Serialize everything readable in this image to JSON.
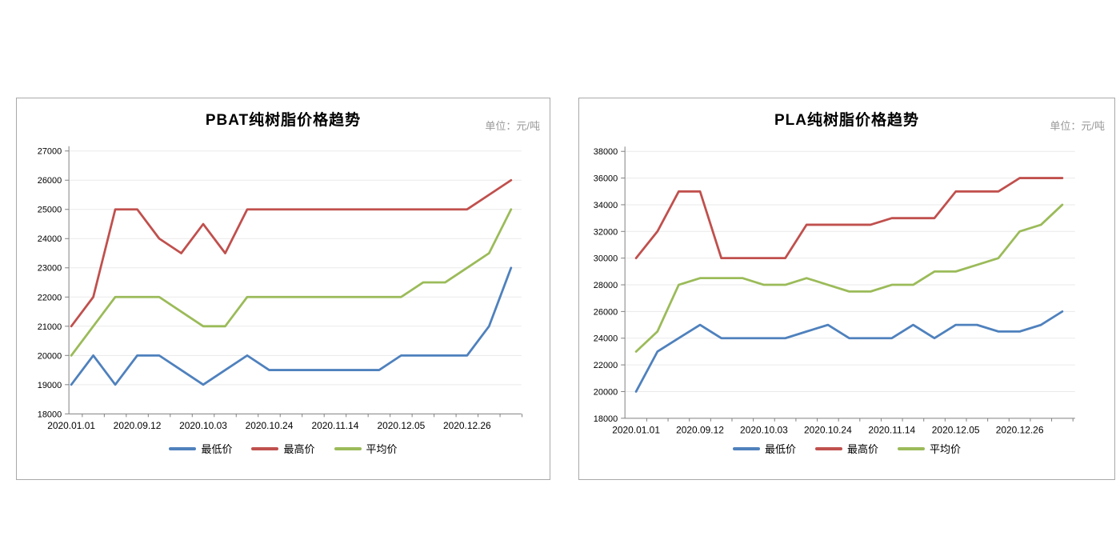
{
  "chart_data": [
    {
      "type": "line",
      "title": "PBAT纯树脂价格趋势",
      "unit_label": "单位：元/吨",
      "xlabel": "",
      "ylabel": "",
      "ylim": [
        18000,
        27000
      ],
      "ytick_step": 1000,
      "y_tick_labels": [
        "27000",
        "26000",
        "25000",
        "24000",
        "23000",
        "22000",
        "21000",
        "20000",
        "19000",
        "18000"
      ],
      "num_points": 21,
      "x_tick_labels": [
        "2020.01.01",
        "2020.09.12",
        "2020.10.03",
        "2020.10.24",
        "2020.11.14",
        "2020.12.05",
        "2020.12.26"
      ],
      "x_tick_label_point_indices": [
        0,
        3,
        6,
        9,
        12,
        15,
        18
      ],
      "grid": true,
      "legend_position": "bottom",
      "series": [
        {
          "name": "最低价",
          "color": "#4F81BD",
          "values": [
            19000,
            20000,
            19000,
            20000,
            20000,
            19500,
            19000,
            19500,
            20000,
            19500,
            19500,
            19500,
            19500,
            19500,
            19500,
            20000,
            20000,
            20000,
            20000,
            21000,
            23000
          ]
        },
        {
          "name": "最高价",
          "color": "#C0504D",
          "values": [
            21000,
            22000,
            25000,
            25000,
            24000,
            23500,
            24500,
            23500,
            25000,
            25000,
            25000,
            25000,
            25000,
            25000,
            25000,
            25000,
            25000,
            25000,
            25000,
            25500,
            26000
          ]
        },
        {
          "name": "平均价",
          "color": "#9BBB59",
          "values": [
            20000,
            21000,
            22000,
            22000,
            22000,
            21500,
            21000,
            21000,
            22000,
            22000,
            22000,
            22000,
            22000,
            22000,
            22000,
            22000,
            22500,
            22500,
            23000,
            23500,
            25000
          ]
        }
      ]
    },
    {
      "type": "line",
      "title": "PLA纯树脂价格趋势",
      "unit_label": "单位：元/吨",
      "xlabel": "",
      "ylabel": "",
      "ylim": [
        18000,
        38000
      ],
      "ytick_step": 2000,
      "y_tick_labels": [
        "38000",
        "36000",
        "34000",
        "32000",
        "30000",
        "28000",
        "26000",
        "24000",
        "22000",
        "20000",
        "18000"
      ],
      "num_points": 21,
      "x_tick_labels": [
        "2020.01.01",
        "2020.09.12",
        "2020.10.03",
        "2020.10.24",
        "2020.11.14",
        "2020.12.05",
        "2020.12.26"
      ],
      "x_tick_label_point_indices": [
        0,
        3,
        6,
        9,
        12,
        15,
        18
      ],
      "grid": true,
      "legend_position": "bottom",
      "series": [
        {
          "name": "最低价",
          "color": "#4F81BD",
          "values": [
            20000,
            23000,
            24000,
            25000,
            24000,
            24000,
            24000,
            24000,
            24500,
            25000,
            24000,
            24000,
            24000,
            25000,
            24000,
            25000,
            25000,
            24500,
            24500,
            25000,
            26000
          ]
        },
        {
          "name": "最高价",
          "color": "#C0504D",
          "values": [
            30000,
            32000,
            35000,
            35000,
            30000,
            30000,
            30000,
            30000,
            32500,
            32500,
            32500,
            32500,
            33000,
            33000,
            33000,
            35000,
            35000,
            35000,
            36000,
            36000,
            36000
          ]
        },
        {
          "name": "平均价",
          "color": "#9BBB59",
          "values": [
            23000,
            24500,
            28000,
            28500,
            28500,
            28500,
            28000,
            28000,
            28500,
            28000,
            27500,
            27500,
            28000,
            28000,
            29000,
            29000,
            29500,
            30000,
            32000,
            32500,
            34000
          ]
        }
      ]
    }
  ]
}
